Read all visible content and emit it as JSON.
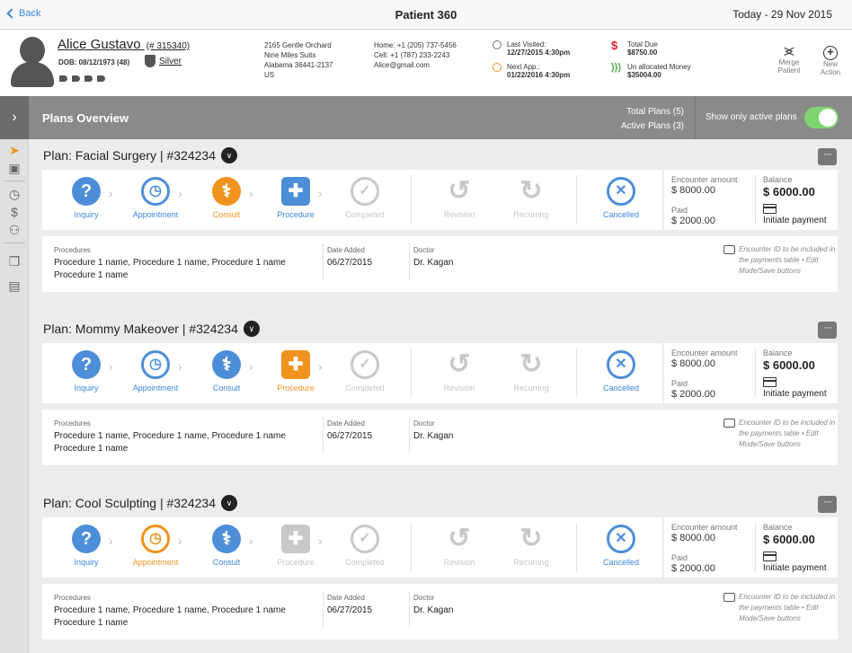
{
  "topbar": {
    "back_label": "Back",
    "title": "Patient 360",
    "date": "Today - 29 Nov 2015"
  },
  "patient": {
    "name": "Alice Gustavo",
    "id": "(# 315340)",
    "dob": "DOB: 08/12/1973 (48)",
    "tier": "Silver",
    "address": [
      "2165 Gentle Orchard",
      "Nine Miles Suits",
      "Alabama 36441-2137",
      "US"
    ],
    "contact": [
      "Home: +1 (205) 737-5456",
      "Cell: +1 (787) 233-2243",
      "Alice@gmail.com"
    ],
    "last_visited_label": "Last Visited:",
    "last_visited_value": "12/27/2015 4:30pm",
    "next_app_label": "Next App.:",
    "next_app_value": "01/22/2016 4:30pm",
    "total_due_label": "Total Due",
    "total_due_value": "$8750.00",
    "unallocated_label": "Un allocated Money",
    "unallocated_value": "$35004.00",
    "actions": {
      "merge_label": [
        "Merge",
        "Patient"
      ],
      "new_label": [
        "New",
        "Action"
      ]
    },
    "colors": {
      "due": "#e2201f",
      "unallocated": "#4caf50"
    }
  },
  "overview": {
    "title": "Plans Overview",
    "total_plans": "Total Plans (5)",
    "active_plans": "Active Plans (3)",
    "filter_label": "Show only active plans",
    "toggle_on": true,
    "toggle_color": "#7ed56f"
  },
  "labels": {
    "encounter_amount": "Encounter amount",
    "balance": "Balance",
    "paid": "Paid",
    "initiate_payment": "Initiate payment",
    "procedures": "Procedures",
    "date_added": "Date Added",
    "doctor": "Doctor",
    "note": "Encounter ID to be included in the payments table • Edit Mode/Save buttons"
  },
  "plans": [
    {
      "title": "Plan: Facial Surgery | #324234",
      "steps": [
        {
          "label": "Inquiry",
          "state": "blue",
          "icon": "question-icon"
        },
        {
          "label": "Appointment",
          "state": "blue",
          "icon": "clock-icon"
        },
        {
          "label": "Consult",
          "state": "orange",
          "icon": "doctor-icon"
        },
        {
          "label": "Procedure",
          "state": "blue",
          "icon": "medkit-icon"
        },
        {
          "label": "Completed",
          "state": "gray",
          "icon": "check-icon"
        }
      ],
      "extra_steps": [
        {
          "label": "Revision",
          "state": "gray",
          "icon": "undo-icon"
        },
        {
          "label": "Recurring",
          "state": "gray",
          "icon": "refresh-icon"
        },
        {
          "label": "Cancelled",
          "state": "blue",
          "icon": "cancel-icon"
        }
      ],
      "encounter_amount": "$ 8000.00",
      "balance": "$ 6000.00",
      "paid": "$ 2000.00",
      "procedures": "Procedure 1 name, Procedure 1 name, Procedure 1 name Procedure 1 name",
      "date_added": "06/27/2015",
      "doctor": "Dr. Kagan"
    },
    {
      "title": "Plan: Mommy Makeover | #324234",
      "steps": [
        {
          "label": "Inquiry",
          "state": "blue",
          "icon": "question-icon"
        },
        {
          "label": "Appointment",
          "state": "blue",
          "icon": "clock-icon"
        },
        {
          "label": "Consult",
          "state": "blue",
          "icon": "doctor-icon"
        },
        {
          "label": "Procedure",
          "state": "orange",
          "icon": "medkit-icon"
        },
        {
          "label": "Completed",
          "state": "gray",
          "icon": "check-icon"
        }
      ],
      "extra_steps": [
        {
          "label": "Revision",
          "state": "gray",
          "icon": "undo-icon"
        },
        {
          "label": "Recurring",
          "state": "gray",
          "icon": "refresh-icon"
        },
        {
          "label": "Cancelled",
          "state": "blue",
          "icon": "cancel-icon"
        }
      ],
      "encounter_amount": "$ 8000.00",
      "balance": "$ 6000.00",
      "paid": "$ 2000.00",
      "procedures": "Procedure 1 name, Procedure 1 name, Procedure 1 name Procedure 1 name",
      "date_added": "06/27/2015",
      "doctor": "Dr. Kagan"
    },
    {
      "title": "Plan: Cool Sculpting | #324234",
      "steps": [
        {
          "label": "Inquiry",
          "state": "blue",
          "icon": "question-icon"
        },
        {
          "label": "Appointment",
          "state": "orange",
          "icon": "clock-icon"
        },
        {
          "label": "Consult",
          "state": "blue",
          "icon": "doctor-icon"
        },
        {
          "label": "Procedure",
          "state": "gray",
          "icon": "medkit-icon"
        },
        {
          "label": "Completed",
          "state": "gray",
          "icon": "check-icon"
        }
      ],
      "extra_steps": [
        {
          "label": "Revision",
          "state": "gray",
          "icon": "undo-icon"
        },
        {
          "label": "Recurring",
          "state": "gray",
          "icon": "refresh-icon"
        },
        {
          "label": "Cancelled",
          "state": "blue",
          "icon": "cancel-icon"
        }
      ],
      "encounter_amount": "$ 8000.00",
      "balance": "$ 6000.00",
      "paid": "$ 2000.00",
      "procedures": "Procedure 1 name, Procedure 1 name, Procedure 1 name Procedure 1 name",
      "date_added": "06/27/2015",
      "doctor": "Dr. Kagan"
    }
  ],
  "sidebar_icons": [
    "rocket-icon",
    "id-card-icon",
    "clock-icon",
    "dollar-icon",
    "users-icon",
    "documents-icon",
    "clipboard-icon"
  ]
}
